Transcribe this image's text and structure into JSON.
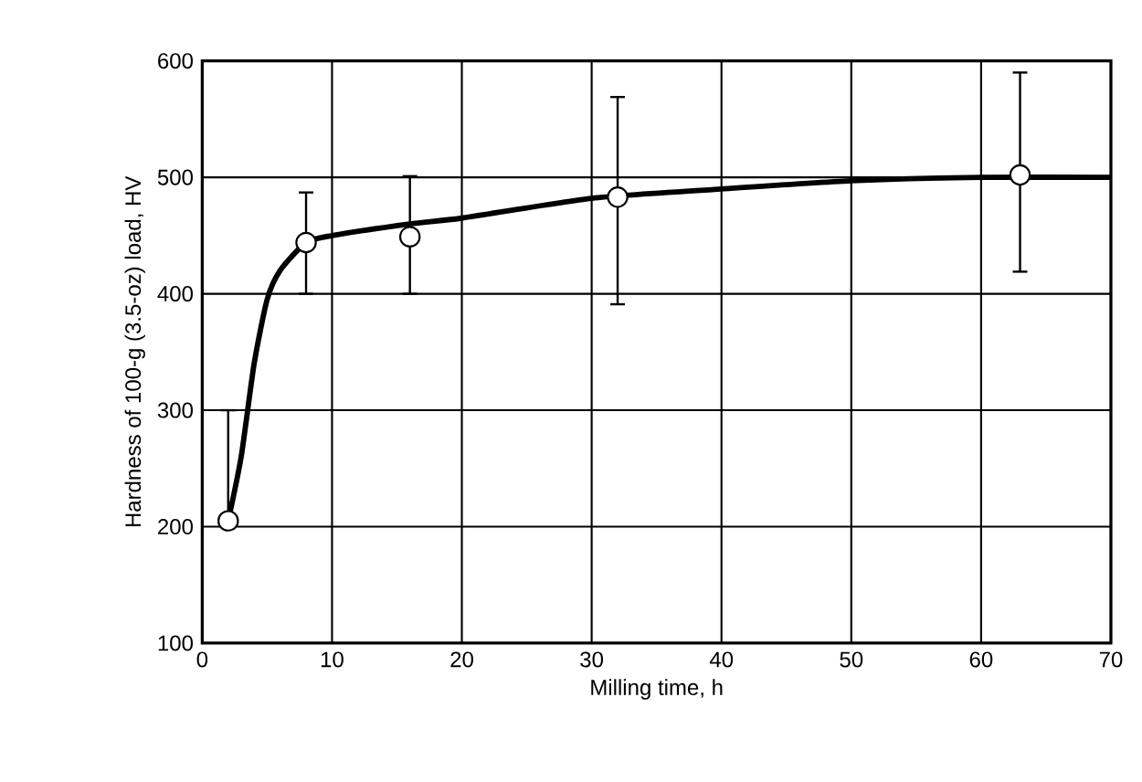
{
  "chart_data": {
    "type": "scatter",
    "xlabel": "Milling time, h",
    "ylabel": "Hardness of 100-g (3.5-oz) load, HV",
    "xlim": [
      0,
      70
    ],
    "ylim": [
      100,
      600
    ],
    "xticks": [
      0,
      10,
      20,
      30,
      40,
      50,
      60,
      70
    ],
    "yticks": [
      100,
      200,
      300,
      400,
      500,
      600
    ],
    "grid": true,
    "series": [
      {
        "type": "line",
        "color": "#000000",
        "marker": "none",
        "x": [
          2,
          3,
          4,
          5,
          6,
          8,
          10,
          16,
          20,
          30,
          40,
          50,
          60,
          70
        ],
        "values": [
          205,
          260,
          340,
          395,
          420,
          444,
          450,
          460,
          465,
          482,
          490,
          497,
          500,
          500
        ]
      },
      {
        "color": "#000000",
        "marker": "circle",
        "x": [
          2,
          8,
          16,
          32,
          63
        ],
        "values": [
          205,
          444,
          449,
          483,
          502
        ],
        "errors": [
          [
            200,
            300
          ],
          [
            400,
            487
          ],
          [
            400,
            501
          ],
          [
            391,
            569
          ],
          [
            419,
            590
          ]
        ]
      }
    ]
  }
}
